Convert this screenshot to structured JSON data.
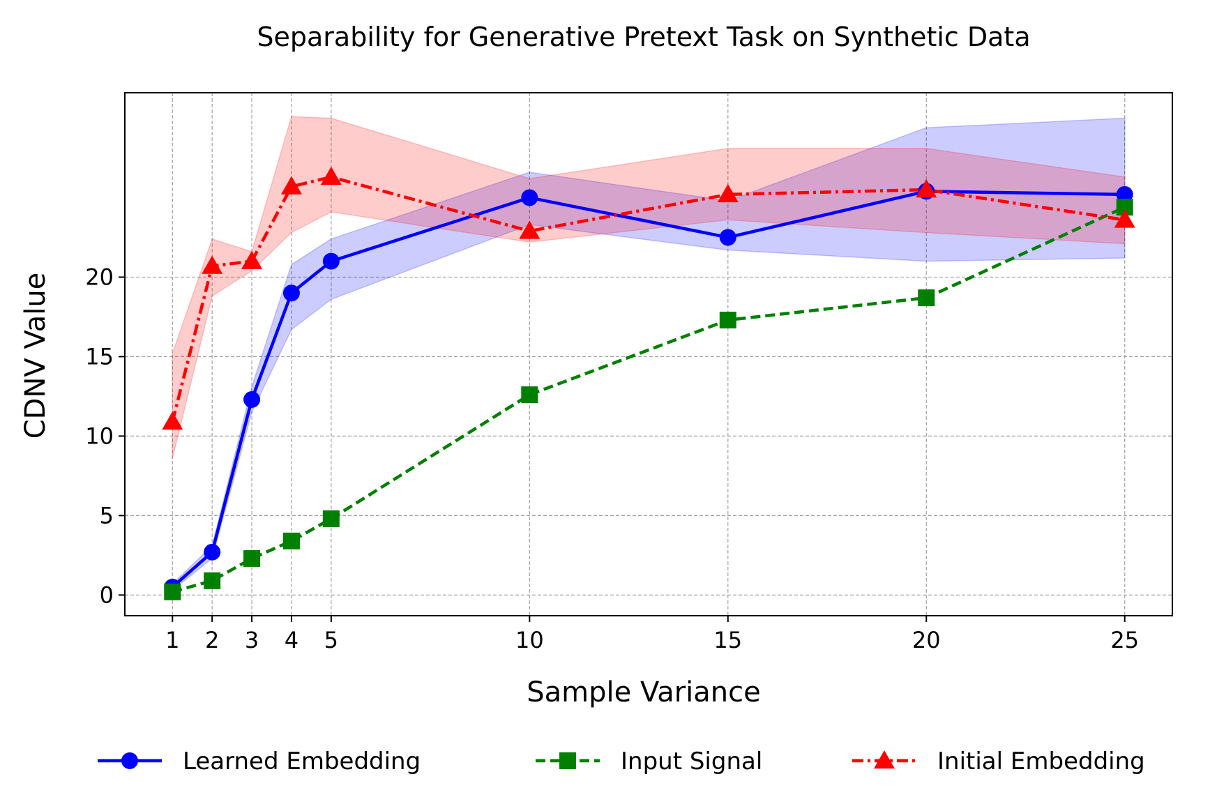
{
  "chart_data": {
    "type": "line",
    "title": "Separability for Generative Pretext Task on Synthetic Data",
    "xlabel": "Sample Variance",
    "ylabel": "CDNV Value",
    "x": [
      1,
      2,
      3,
      4,
      5,
      10,
      15,
      20,
      25
    ],
    "xticks": [
      1,
      2,
      3,
      4,
      5,
      10,
      15,
      20,
      25
    ],
    "yticks": [
      0,
      5,
      10,
      15,
      20
    ],
    "xlim": [
      -0.2,
      26.2
    ],
    "ylim": [
      -1.3,
      31.6
    ],
    "grid": true,
    "legend_position": "bottom",
    "series": [
      {
        "name": "Learned Embedding",
        "color": "#0000ff",
        "line_style": "solid",
        "marker": "circle",
        "values": [
          0.5,
          2.7,
          12.3,
          19.0,
          21.0,
          25.0,
          22.5,
          25.4,
          25.2
        ],
        "band_lower": [
          0.3,
          2.3,
          11.5,
          16.7,
          18.6,
          23.3,
          21.7,
          21.0,
          21.2
        ],
        "band_upper": [
          0.7,
          3.1,
          13.1,
          20.8,
          22.4,
          26.6,
          24.8,
          29.4,
          30.0
        ],
        "band_color": "#0000ff"
      },
      {
        "name": "Input Signal",
        "color": "#008000",
        "line_style": "dashed",
        "marker": "square",
        "values": [
          0.2,
          0.9,
          2.3,
          3.4,
          4.8,
          12.6,
          17.3,
          18.7,
          24.4
        ]
      },
      {
        "name": "Initial Embedding",
        "color": "#ff0000",
        "line_style": "dashdot",
        "marker": "triangle",
        "values": [
          10.9,
          20.7,
          21.0,
          25.7,
          26.3,
          22.9,
          25.2,
          25.5,
          23.6
        ],
        "band_lower": [
          8.6,
          18.8,
          20.4,
          22.8,
          24.1,
          22.2,
          23.6,
          22.8,
          22.1
        ],
        "band_upper": [
          15.2,
          22.4,
          21.6,
          30.1,
          30.0,
          26.2,
          28.1,
          28.1,
          26.3
        ],
        "band_color": "#ff0000"
      }
    ]
  }
}
